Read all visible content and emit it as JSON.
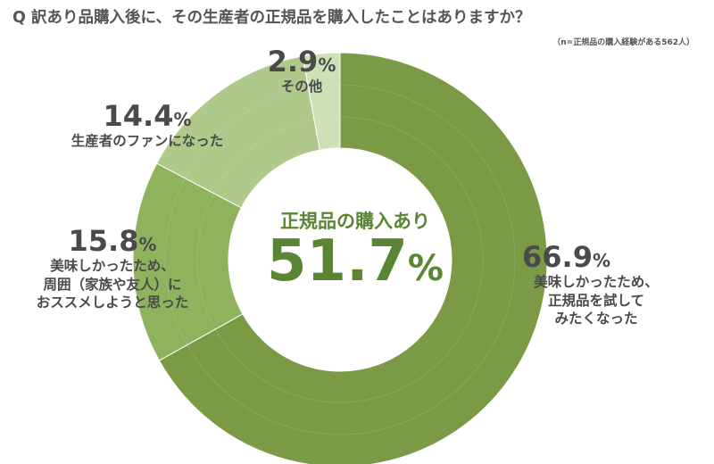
{
  "title": "Q 訳あり品購入後に、その生産者の正規品を購入したことはありますか？",
  "subtitle": "（n=正規品の購入経験がある562人）",
  "center": {
    "label": "正規品の購入あり",
    "value": "51.7",
    "unit": "%"
  },
  "chart_data": {
    "type": "pie",
    "donut": true,
    "title": "Q 訳あり品購入後に、その生産者の正規品を購入したことはありますか？",
    "subtitle": "（n=正規品の購入経験がある562人）",
    "categories": [
      "美味しかったため、正規品を試してみたくなった",
      "美味しかったため、周囲（家族や友人）におススメしようと思った",
      "生産者のファンになった",
      "その他"
    ],
    "values": [
      66.9,
      15.8,
      14.4,
      2.9
    ],
    "colors": [
      "#7a9a46",
      "#8eb35c",
      "#aec98a",
      "#cde0b8"
    ],
    "unit": "%",
    "center_value": 51.7,
    "labels": [
      {
        "value": "66.9",
        "unit": "%",
        "text": "美味しかったため、\n正規品を試して\nみたくなった"
      },
      {
        "value": "15.8",
        "unit": "%",
        "text": "美味しかったため、\n周囲（家族や友人）に\nおススメしようと思った"
      },
      {
        "value": "14.4",
        "unit": "%",
        "text": "生産者のファンになった"
      },
      {
        "value": "2.9",
        "unit": "%",
        "text": "その他"
      }
    ]
  }
}
